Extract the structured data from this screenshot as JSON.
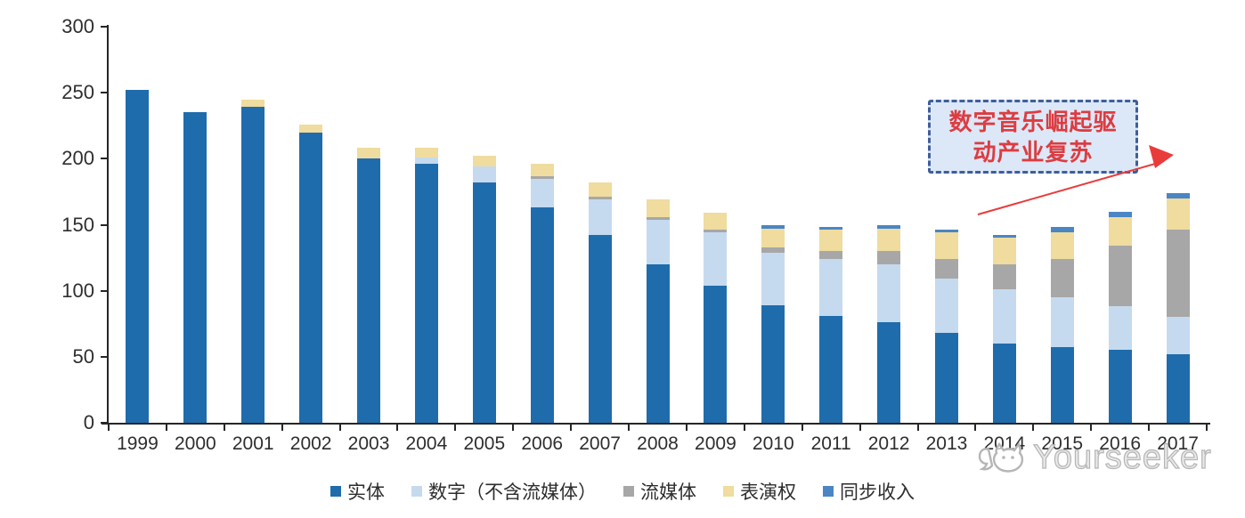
{
  "watermark": {
    "brand": "Yourseeker"
  },
  "annotation": {
    "lines": [
      "数字音乐崛起驱",
      "动产业复苏"
    ],
    "full_text": "数字音乐崛起驱动产业复苏",
    "box_fill": "#dce8f7",
    "box_border_color": "#3f5e9b",
    "text_color": "#dd3c41",
    "arrow_color": "#ea3b3b"
  },
  "axis_colors": {
    "line": "#262626",
    "label": "#2e2e2e"
  },
  "chart_data": {
    "type": "bar",
    "stacked": true,
    "title": "",
    "xlabel": "",
    "ylabel": "",
    "ylim": [
      0,
      300
    ],
    "yticks": [
      0,
      50,
      100,
      150,
      200,
      250,
      300
    ],
    "grid": false,
    "legend_position": "bottom",
    "categories": [
      "1999",
      "2000",
      "2001",
      "2002",
      "2003",
      "2004",
      "2005",
      "2006",
      "2007",
      "2008",
      "2009",
      "2010",
      "2011",
      "2012",
      "2013",
      "2014",
      "2015",
      "2016",
      "2017"
    ],
    "series": [
      {
        "name": "实体",
        "color": "#1f6cad",
        "values": [
          252,
          235,
          239,
          220,
          200,
          196,
          182,
          163,
          142,
          120,
          104,
          89,
          81,
          76,
          68,
          60,
          57,
          55,
          52
        ]
      },
      {
        "name": "数字（不含流媒体）",
        "color": "#c5daef",
        "values": [
          0,
          0,
          0,
          0,
          0,
          5,
          12,
          22,
          27,
          34,
          40,
          40,
          43,
          44,
          41,
          41,
          38,
          33,
          28
        ]
      },
      {
        "name": "流媒体",
        "color": "#a7a7a7",
        "values": [
          0,
          0,
          0,
          0,
          0,
          0,
          0,
          2,
          2,
          2,
          2,
          4,
          6,
          10,
          15,
          19,
          29,
          46,
          66
        ]
      },
      {
        "name": "表演权",
        "color": "#efdc9e",
        "values": [
          0,
          0,
          6,
          6,
          8,
          7,
          8,
          9,
          11,
          13,
          13,
          14,
          16,
          17,
          20,
          20,
          20,
          22,
          24
        ]
      },
      {
        "name": "同步收入",
        "color": "#4a86c4",
        "values": [
          0,
          0,
          0,
          0,
          0,
          0,
          0,
          0,
          0,
          0,
          0,
          3,
          2,
          3,
          2,
          2,
          4,
          4,
          4
        ]
      }
    ]
  }
}
